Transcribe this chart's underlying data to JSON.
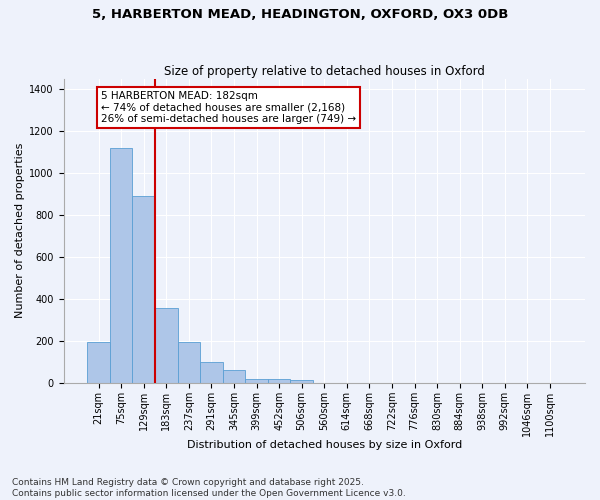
{
  "title_line1": "5, HARBERTON MEAD, HEADINGTON, OXFORD, OX3 0DB",
  "title_line2": "Size of property relative to detached houses in Oxford",
  "xlabel": "Distribution of detached houses by size in Oxford",
  "ylabel": "Number of detached properties",
  "categories": [
    "21sqm",
    "75sqm",
    "129sqm",
    "183sqm",
    "237sqm",
    "291sqm",
    "345sqm",
    "399sqm",
    "452sqm",
    "506sqm",
    "560sqm",
    "614sqm",
    "668sqm",
    "722sqm",
    "776sqm",
    "830sqm",
    "884sqm",
    "938sqm",
    "992sqm",
    "1046sqm",
    "1100sqm"
  ],
  "values": [
    195,
    1120,
    890,
    355,
    195,
    100,
    62,
    20,
    18,
    12,
    0,
    0,
    0,
    0,
    0,
    0,
    0,
    0,
    0,
    0,
    0
  ],
  "bar_color": "#aec6e8",
  "bar_edge_color": "#5a9fd4",
  "vline_x": 2.5,
  "vline_color": "#cc0000",
  "annotation_text": "5 HARBERTON MEAD: 182sqm\n← 74% of detached houses are smaller (2,168)\n26% of semi-detached houses are larger (749) →",
  "annotation_box_color": "#cc0000",
  "ylim": [
    0,
    1450
  ],
  "yticks": [
    0,
    200,
    400,
    600,
    800,
    1000,
    1200,
    1400
  ],
  "background_color": "#eef2fb",
  "grid_color": "#ffffff",
  "footer_text": "Contains HM Land Registry data © Crown copyright and database right 2025.\nContains public sector information licensed under the Open Government Licence v3.0.",
  "title_fontsize": 9.5,
  "subtitle_fontsize": 8.5,
  "axis_label_fontsize": 8,
  "tick_fontsize": 7,
  "annotation_fontsize": 7.5,
  "footer_fontsize": 6.5
}
